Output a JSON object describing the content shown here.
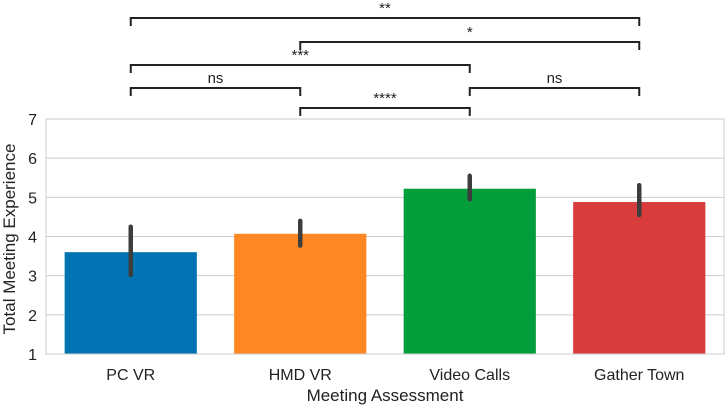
{
  "chart_data": {
    "type": "bar",
    "title": "",
    "xlabel": "Meeting Assessment",
    "ylabel": "Total Meeting Experience",
    "ylim": [
      1,
      7
    ],
    "yticks": [
      1,
      2,
      3,
      4,
      5,
      6,
      7
    ],
    "grid": true,
    "categories": [
      "PC VR",
      "HMD VR",
      "Video Calls",
      "Gather Town"
    ],
    "values": [
      3.6,
      4.07,
      5.22,
      4.88
    ],
    "error_low": [
      3.02,
      3.77,
      4.95,
      4.55
    ],
    "error_high": [
      4.25,
      4.4,
      5.55,
      5.31
    ],
    "colors": [
      "#0173b2",
      "#fd8722",
      "#029e3c",
      "#d83c3c"
    ],
    "significance": [
      {
        "from": 0,
        "to": 3,
        "label": "**"
      },
      {
        "from": 1,
        "to": 3,
        "label": "*"
      },
      {
        "from": 0,
        "to": 2,
        "label": "***"
      },
      {
        "from": 0,
        "to": 1,
        "label": "ns"
      },
      {
        "from": 2,
        "to": 3,
        "label": "ns"
      },
      {
        "from": 1,
        "to": 2,
        "label": "****"
      }
    ]
  }
}
